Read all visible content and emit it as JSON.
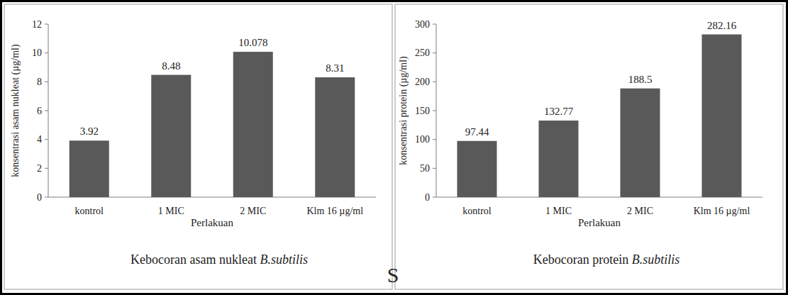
{
  "chart_data": [
    {
      "type": "bar",
      "title": "Kebocoran asam nukleat B.subtilis",
      "x_label": "Perlakuan",
      "y_label": "konsentrasi asam nukleat (µg/ml)",
      "categories": [
        "kontrol",
        "1 MIC",
        "2 MIC",
        "Klm 16 µg/ml"
      ],
      "values": [
        3.92,
        8.48,
        10.078,
        8.31
      ],
      "color": "#595959",
      "ylim": [
        0,
        12
      ],
      "yticks": [
        0,
        2,
        4,
        6,
        8,
        10,
        12
      ],
      "grid": false,
      "data_labels": true
    },
    {
      "type": "bar",
      "title": "Kebocoran protein B.subtilis",
      "x_label": "Perlakuan",
      "y_label": "konsentrasi protein (µg/ml)",
      "categories": [
        "kontrol",
        "1 MIC",
        "2 MIC",
        "Klm 16 µg/ml"
      ],
      "values": [
        97.44,
        132.77,
        188.5,
        282.16
      ],
      "color": "#595959",
      "ylim": [
        0,
        300
      ],
      "yticks": [
        0,
        50,
        100,
        150,
        200,
        250,
        300
      ],
      "grid": false,
      "data_labels": true
    }
  ],
  "watermark": "S"
}
